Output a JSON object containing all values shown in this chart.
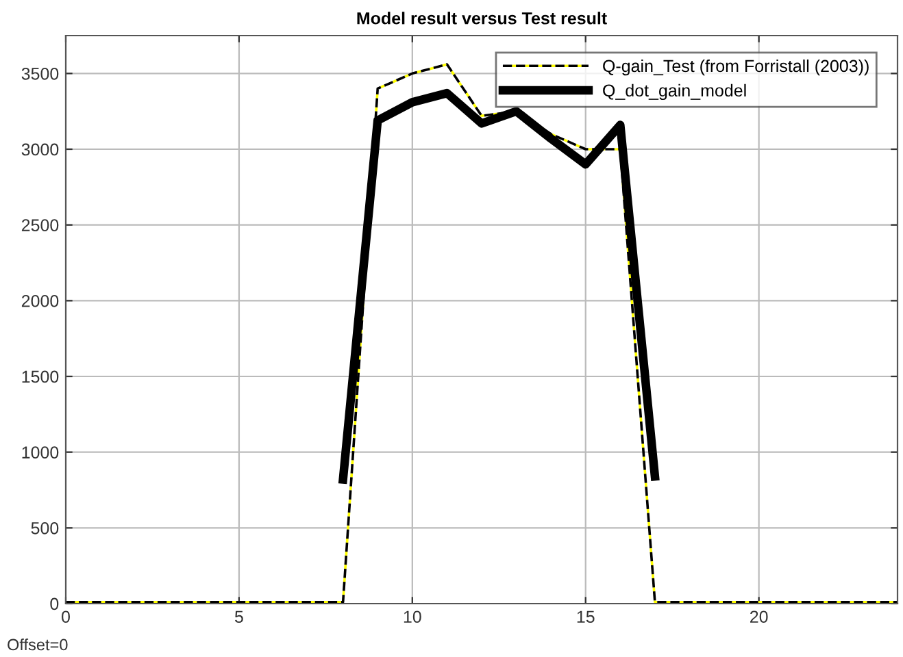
{
  "chart_data": {
    "type": "line",
    "title": "Model result versus Test result",
    "xlim": [
      0,
      24
    ],
    "xticks": [
      0,
      5,
      10,
      15,
      20
    ],
    "ylim": [
      0,
      3750
    ],
    "yticks": [
      0,
      500,
      1000,
      1500,
      2000,
      2500,
      3000,
      3500
    ],
    "grid": true,
    "legend": "top right",
    "series": [
      {
        "name": "Q-gain_Test (from Forristall (2003))",
        "color": "#000000",
        "line_style": "dashed",
        "x": [
          0,
          8,
          9,
          10,
          11,
          12,
          13,
          14,
          15,
          16,
          17,
          24
        ],
        "values": [
          10,
          10,
          3400,
          3500,
          3560,
          3220,
          3250,
          3100,
          3000,
          3000,
          10,
          10
        ]
      },
      {
        "name": "Q_dot_gain_model",
        "color": "#000000",
        "line_style": "solid",
        "x": [
          8,
          9,
          10,
          11,
          12,
          13,
          14,
          15,
          16,
          17
        ],
        "values": [
          820,
          3190,
          3310,
          3370,
          3170,
          3250,
          3070,
          2900,
          3160,
          840
        ]
      }
    ],
    "annotations": [
      "Offset=0"
    ]
  }
}
